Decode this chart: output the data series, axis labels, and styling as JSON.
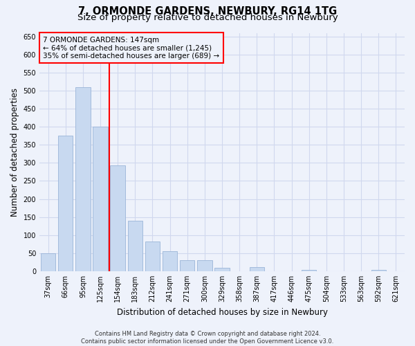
{
  "title": "7, ORMONDE GARDENS, NEWBURY, RG14 1TG",
  "subtitle": "Size of property relative to detached houses in Newbury",
  "xlabel": "Distribution of detached houses by size in Newbury",
  "ylabel": "Number of detached properties",
  "bar_color": "#c8d9f0",
  "bar_edge_color": "#9ab5d8",
  "categories": [
    "37sqm",
    "66sqm",
    "95sqm",
    "125sqm",
    "154sqm",
    "183sqm",
    "212sqm",
    "241sqm",
    "271sqm",
    "300sqm",
    "329sqm",
    "358sqm",
    "387sqm",
    "417sqm",
    "446sqm",
    "475sqm",
    "504sqm",
    "533sqm",
    "563sqm",
    "592sqm",
    "621sqm"
  ],
  "values": [
    50,
    375,
    510,
    400,
    293,
    140,
    82,
    56,
    30,
    30,
    9,
    0,
    12,
    0,
    0,
    4,
    0,
    0,
    0,
    3,
    0
  ],
  "redline_x": 3.5,
  "redline_label": "7 ORMONDE GARDENS: 147sqm",
  "annotation_line1": "← 64% of detached houses are smaller (1,245)",
  "annotation_line2": "35% of semi-detached houses are larger (689) →",
  "ylim": [
    0,
    660
  ],
  "yticks": [
    0,
    50,
    100,
    150,
    200,
    250,
    300,
    350,
    400,
    450,
    500,
    550,
    600,
    650
  ],
  "footer1": "Contains HM Land Registry data © Crown copyright and database right 2024.",
  "footer2": "Contains public sector information licensed under the Open Government Licence v3.0.",
  "bg_color": "#eef2fb",
  "grid_color": "#d0d8ee",
  "title_fontsize": 10.5,
  "subtitle_fontsize": 9.5,
  "tick_fontsize": 7,
  "ylabel_fontsize": 8.5,
  "xlabel_fontsize": 8.5,
  "footer_fontsize": 6,
  "annot_fontsize": 7.5
}
